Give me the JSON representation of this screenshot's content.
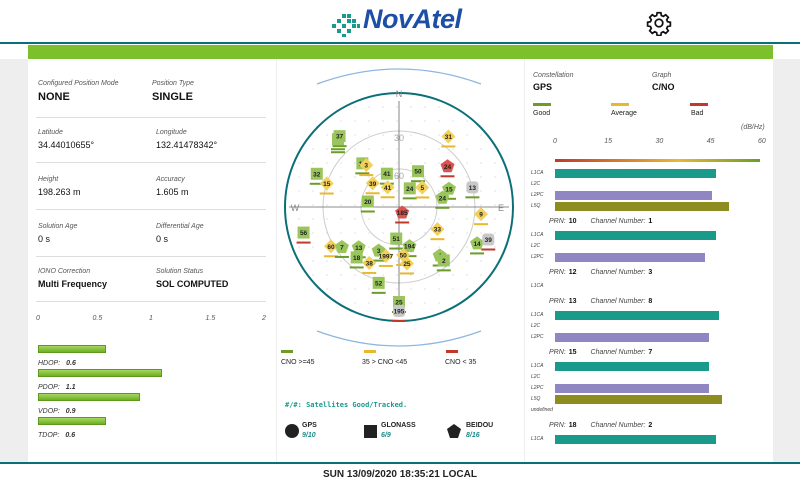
{
  "header": {
    "brand": "NovAtel"
  },
  "footer": {
    "datetime": "SUN 13/09/2020 18:35:21 LOCAL"
  },
  "colors": {
    "good": "#6a9d2a",
    "average": "#e8b830",
    "bad": "#c0392b",
    "accent": "#0b6f78",
    "gps": "#9ac55c",
    "glonass": "#f2d05a",
    "beidou": "#9ac55c"
  },
  "position": {
    "mode_label": "Configured Position Mode",
    "mode": "NONE",
    "type_label": "Position Type",
    "type": "SINGLE",
    "lat_label": "Latitude",
    "lat": "34.44010655°",
    "lon_label": "Longitude",
    "lon": "132.41478342°",
    "height_label": "Height",
    "height": "198.263 m",
    "accuracy_label": "Accuracy",
    "accuracy": "1.605 m",
    "solage_label": "Solution Age",
    "solage": "0 s",
    "diffage_label": "Differential Age",
    "diffage": "0 s",
    "iono_label": "IONO Correction",
    "iono": "Multi Frequency",
    "status_label": "Solution Status",
    "status": "SOL COMPUTED"
  },
  "dop": {
    "ticks": [
      "0",
      "0.5",
      "1",
      "1.5",
      "2"
    ],
    "max": 2,
    "items": [
      {
        "name": "HDOP:",
        "value": "0.6",
        "num": 0.6
      },
      {
        "name": "PDOP:",
        "value": "1.1",
        "num": 1.1
      },
      {
        "name": "VDOP:",
        "value": "0.9",
        "num": 0.9
      },
      {
        "name": "TDOP:",
        "value": "0.6",
        "num": 0.6
      }
    ]
  },
  "skyplot": {
    "north": "N",
    "east": "E",
    "west": "W",
    "ring30": "30",
    "ring60": "60",
    "satellites": [
      {
        "prn": "42",
        "sys": "gps",
        "elev": 18,
        "az": 318,
        "bars": [
          "good",
          "good"
        ]
      },
      {
        "prn": "37",
        "sys": "gps",
        "elev": 17,
        "az": 320,
        "bars": [
          "good"
        ]
      },
      {
        "prn": "31",
        "sys": "glonass",
        "elev": 22,
        "az": 35,
        "bars": [
          "average"
        ]
      },
      {
        "prn": "24",
        "sys": "beidou_bad",
        "elev": 40,
        "az": 50,
        "bars": [
          "bad"
        ]
      },
      {
        "prn": "19",
        "sys": "gps",
        "elev": 45,
        "az": 320,
        "bars": [
          "good"
        ]
      },
      {
        "prn": "3",
        "sys": "glonass",
        "elev": 48,
        "az": 322,
        "bars": [
          "average"
        ]
      },
      {
        "prn": "41",
        "sys": "gps",
        "elev": 62,
        "az": 340,
        "bars": [
          "good"
        ]
      },
      {
        "prn": "50",
        "sys": "gps",
        "elev": 58,
        "az": 28,
        "bars": [
          "good"
        ]
      },
      {
        "prn": "32",
        "sys": "gps",
        "elev": 20,
        "az": 292,
        "bars": [
          "good"
        ]
      },
      {
        "prn": "15",
        "sys": "glonass",
        "elev": 30,
        "az": 288,
        "bars": [
          "average"
        ]
      },
      {
        "prn": "39",
        "sys": "glonass",
        "elev": 62,
        "az": 312,
        "bars": [
          "average"
        ]
      },
      {
        "prn": "41",
        "sys": "glonass",
        "elev": 72,
        "az": 330,
        "bars": [
          "average"
        ]
      },
      {
        "prn": "24",
        "sys": "gps",
        "elev": 73,
        "az": 30,
        "bars": [
          "good"
        ]
      },
      {
        "prn": "5",
        "sys": "glonass",
        "elev": 66,
        "az": 50,
        "bars": [
          "average"
        ]
      },
      {
        "prn": "15",
        "sys": "beidou",
        "elev": 48,
        "az": 70,
        "bars": [
          "good"
        ]
      },
      {
        "prn": "24",
        "sys": "beidou",
        "elev": 55,
        "az": 78,
        "bars": [
          "good"
        ]
      },
      {
        "prn": "13",
        "sys": "gps_grey",
        "elev": 30,
        "az": 75,
        "bars": [
          "good"
        ]
      },
      {
        "prn": "20",
        "sys": "gps",
        "elev": 65,
        "az": 280,
        "bars": [
          "good"
        ]
      },
      {
        "prn": "185",
        "sys": "beidou_bad",
        "elev": 85,
        "az": 150,
        "bars": [
          "bad"
        ]
      },
      {
        "prn": "9",
        "sys": "glonass",
        "elev": 25,
        "az": 95,
        "bars": [
          "average"
        ]
      },
      {
        "prn": "56",
        "sys": "gps",
        "elev": 12,
        "az": 255,
        "bars": [
          "bad"
        ]
      },
      {
        "prn": "51",
        "sys": "gps",
        "elev": 65,
        "az": 185,
        "bars": [
          "good"
        ]
      },
      {
        "prn": "33",
        "sys": "glonass",
        "elev": 55,
        "az": 120,
        "bars": [
          "average"
        ]
      },
      {
        "prn": "194",
        "sys": "beidou",
        "elev": 58,
        "az": 165,
        "bars": [
          "good"
        ]
      },
      {
        "prn": "60",
        "sys": "glonass",
        "elev": 28,
        "az": 240,
        "bars": [
          "average"
        ]
      },
      {
        "prn": "7",
        "sys": "beidou",
        "elev": 35,
        "az": 235,
        "bars": [
          "good"
        ]
      },
      {
        "prn": "13",
        "sys": "beidou",
        "elev": 45,
        "az": 225,
        "bars": [
          "good"
        ]
      },
      {
        "prn": "3",
        "sys": "beidou",
        "elev": 52,
        "az": 205,
        "bars": [
          "good"
        ]
      },
      {
        "prn": "50",
        "sys": "glonass",
        "elev": 52,
        "az": 175,
        "bars": [
          "average"
        ]
      },
      {
        "prn": "4",
        "sys": "beidou",
        "elev": 40,
        "az": 140,
        "bars": [
          "good"
        ]
      },
      {
        "prn": "14",
        "sys": "beidou",
        "elev": 22,
        "az": 115,
        "bars": [
          "good"
        ]
      },
      {
        "prn": "39",
        "sys": "gps_grey",
        "elev": 15,
        "az": 110,
        "bars": [
          "bad"
        ]
      },
      {
        "prn": "2",
        "sys": "gps",
        "elev": 35,
        "az": 140,
        "bars": [
          "good"
        ]
      },
      {
        "prn": "18",
        "sys": "gps",
        "elev": 38,
        "az": 220,
        "bars": [
          "good"
        ]
      },
      {
        "prn": "38",
        "sys": "glonass",
        "elev": 40,
        "az": 208,
        "bars": [
          "average"
        ]
      },
      {
        "prn": "1997",
        "sys": "glonass",
        "elev": 50,
        "az": 195,
        "bars": [
          "average"
        ]
      },
      {
        "prn": "25",
        "sys": "glonass",
        "elev": 45,
        "az": 172,
        "bars": [
          "average"
        ]
      },
      {
        "prn": "52",
        "sys": "gps",
        "elev": 28,
        "az": 195,
        "bars": [
          "good"
        ]
      },
      {
        "prn": "25",
        "sys": "gps",
        "elev": 15,
        "az": 180,
        "bars": [
          "good"
        ]
      },
      {
        "prn": "195",
        "sys": "gps_grey",
        "elev": 8,
        "az": 180,
        "bars": [
          "bad"
        ]
      }
    ]
  },
  "cno_legend": {
    "good": "CNO >=45",
    "average": "35 > CNO <45",
    "bad": "CNO < 35"
  },
  "sat_counts": {
    "title": "#/#: Satellites Good/Tracked.",
    "gps_label": "GPS",
    "gps_count": "9/10",
    "glonass_label": "GLONASS",
    "glonass_count": "6/9",
    "beidou_label": "BEIDOU",
    "beidou_count": "8/16"
  },
  "cno": {
    "constellation_label": "Constellation",
    "constellation": "GPS",
    "graph_label": "Graph",
    "graph": "C/NO",
    "good": "Good",
    "average": "Average",
    "bad": "Bad",
    "unit": "(dB/Hz)",
    "ticks": [
      "0",
      "15",
      "30",
      "45",
      "60"
    ],
    "max": 60,
    "prn_label": "PRN:",
    "channel_label": "Channel Number:",
    "groups": [
      {
        "prn": "",
        "channel": "",
        "signals": [
          {
            "name": "L1CA",
            "value": 47,
            "color": "#1a9a8a"
          },
          {
            "name": "L2C",
            "value": 0,
            "color": "#1a9a8a"
          },
          {
            "name": "L2PC",
            "value": 46,
            "color": "#8f86c2"
          },
          {
            "name": "L5Q",
            "value": 51,
            "color": "#8c8c20"
          }
        ]
      },
      {
        "prn": "10",
        "channel": "1",
        "signals": [
          {
            "name": "L1CA",
            "value": 47,
            "color": "#1a9a8a"
          },
          {
            "name": "L2C",
            "value": 0,
            "color": "#1a9a8a"
          },
          {
            "name": "L2PC",
            "value": 44,
            "color": "#8f86c2"
          }
        ]
      },
      {
        "prn": "12",
        "channel": "3",
        "signals": [
          {
            "name": "L1CA",
            "value": 0,
            "color": "#1a9a8a"
          }
        ]
      },
      {
        "prn": "13",
        "channel": "8",
        "signals": [
          {
            "name": "L1CA",
            "value": 48,
            "color": "#1a9a8a"
          },
          {
            "name": "L2C",
            "value": 0,
            "color": "#1a9a8a"
          },
          {
            "name": "L2PC",
            "value": 45,
            "color": "#8f86c2"
          }
        ]
      },
      {
        "prn": "15",
        "channel": "7",
        "signals": [
          {
            "name": "L1CA",
            "value": 45,
            "color": "#1a9a8a"
          },
          {
            "name": "L2C",
            "value": 0,
            "color": "#1a9a8a"
          },
          {
            "name": "L2PC",
            "value": 45,
            "color": "#8f86c2"
          },
          {
            "name": "L5Q",
            "value": 49,
            "color": "#8c8c20"
          },
          {
            "name": "undefined",
            "value": 0,
            "color": "#8c8c20"
          }
        ]
      },
      {
        "prn": "18",
        "channel": "2",
        "signals": [
          {
            "name": "L1CA",
            "value": 47,
            "color": "#1a9a8a"
          }
        ]
      }
    ]
  }
}
